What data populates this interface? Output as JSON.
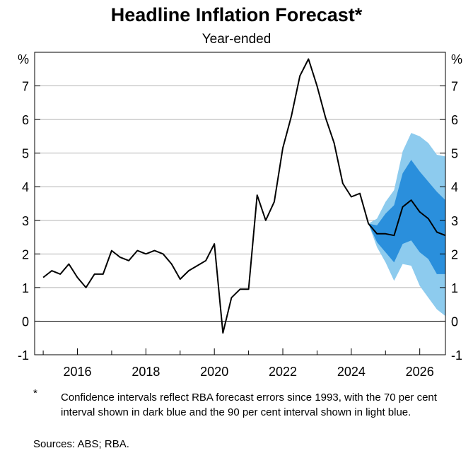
{
  "title": "Headline Inflation Forecast*",
  "subtitle": "Year-ended",
  "footnote_marker": "*",
  "footnote": "Confidence intervals reflect RBA forecast errors since 1993, with the 70 per cent interval shown in dark blue and the 90 per cent interval shown in light blue.",
  "sources": "Sources: ABS; RBA.",
  "colors": {
    "line": "#000000",
    "interval_70": "#2a8fdc",
    "interval_90": "#8dcbee",
    "grid": "#b3b3b3"
  },
  "chart_data": {
    "type": "line",
    "unit_label": "%",
    "ylim": [
      -1,
      8
    ],
    "yticks": [
      -1,
      0,
      1,
      2,
      3,
      4,
      5,
      6,
      7
    ],
    "xlim": [
      2014.75,
      2026.75
    ],
    "xticks": [
      2016,
      2018,
      2020,
      2022,
      2024,
      2026
    ],
    "grid": true,
    "series": [
      {
        "values": [
          [
            2015.0,
            1.3
          ],
          [
            2015.25,
            1.5
          ],
          [
            2015.5,
            1.4
          ],
          [
            2015.75,
            1.7
          ],
          [
            2016.0,
            1.3
          ],
          [
            2016.25,
            1.0
          ],
          [
            2016.5,
            1.4
          ],
          [
            2016.75,
            1.4
          ],
          [
            2017.0,
            2.1
          ],
          [
            2017.25,
            1.9
          ],
          [
            2017.5,
            1.8
          ],
          [
            2017.75,
            2.1
          ],
          [
            2018.0,
            2.0
          ],
          [
            2018.25,
            2.1
          ],
          [
            2018.5,
            2.0
          ],
          [
            2018.75,
            1.7
          ],
          [
            2019.0,
            1.25
          ],
          [
            2019.25,
            1.5
          ],
          [
            2019.5,
            1.65
          ],
          [
            2019.75,
            1.8
          ],
          [
            2020.0,
            2.3
          ],
          [
            2020.25,
            -0.35
          ],
          [
            2020.5,
            0.7
          ],
          [
            2020.75,
            0.95
          ],
          [
            2021.0,
            0.95
          ],
          [
            2021.25,
            3.75
          ],
          [
            2021.5,
            3.0
          ],
          [
            2021.75,
            3.55
          ],
          [
            2022.0,
            5.15
          ],
          [
            2022.25,
            6.1
          ],
          [
            2022.5,
            7.3
          ],
          [
            2022.75,
            7.8
          ],
          [
            2023.0,
            7.0
          ],
          [
            2023.25,
            6.05
          ],
          [
            2023.5,
            5.3
          ],
          [
            2023.75,
            4.1
          ],
          [
            2024.0,
            3.7
          ],
          [
            2024.25,
            3.8
          ],
          [
            2024.5,
            2.9
          ],
          [
            2024.75,
            2.6
          ],
          [
            2025.0,
            2.6
          ],
          [
            2025.25,
            2.55
          ],
          [
            2025.5,
            3.4
          ],
          [
            2025.75,
            3.6
          ],
          [
            2026.0,
            3.25
          ],
          [
            2026.25,
            3.05
          ],
          [
            2026.5,
            2.65
          ],
          [
            2026.75,
            2.55
          ]
        ]
      }
    ],
    "intervals": [
      {
        "level": "90",
        "x": [
          2024.5,
          2024.75,
          2025.0,
          2025.25,
          2025.5,
          2025.75,
          2026.0,
          2026.25,
          2026.5,
          2026.75
        ],
        "lower": [
          2.9,
          2.2,
          1.75,
          1.2,
          1.7,
          1.65,
          1.05,
          0.7,
          0.35,
          0.15
        ],
        "upper": [
          2.9,
          3.05,
          3.55,
          3.9,
          5.05,
          5.6,
          5.5,
          5.3,
          4.95,
          4.9
        ]
      },
      {
        "level": "70",
        "x": [
          2024.5,
          2024.75,
          2025.0,
          2025.25,
          2025.5,
          2025.75,
          2026.0,
          2026.25,
          2026.5,
          2026.75
        ],
        "lower": [
          2.9,
          2.35,
          2.05,
          1.75,
          2.3,
          2.4,
          2.05,
          1.85,
          1.4,
          1.4
        ],
        "upper": [
          2.9,
          2.85,
          3.2,
          3.45,
          4.4,
          4.8,
          4.45,
          4.15,
          3.85,
          3.6
        ]
      }
    ]
  }
}
